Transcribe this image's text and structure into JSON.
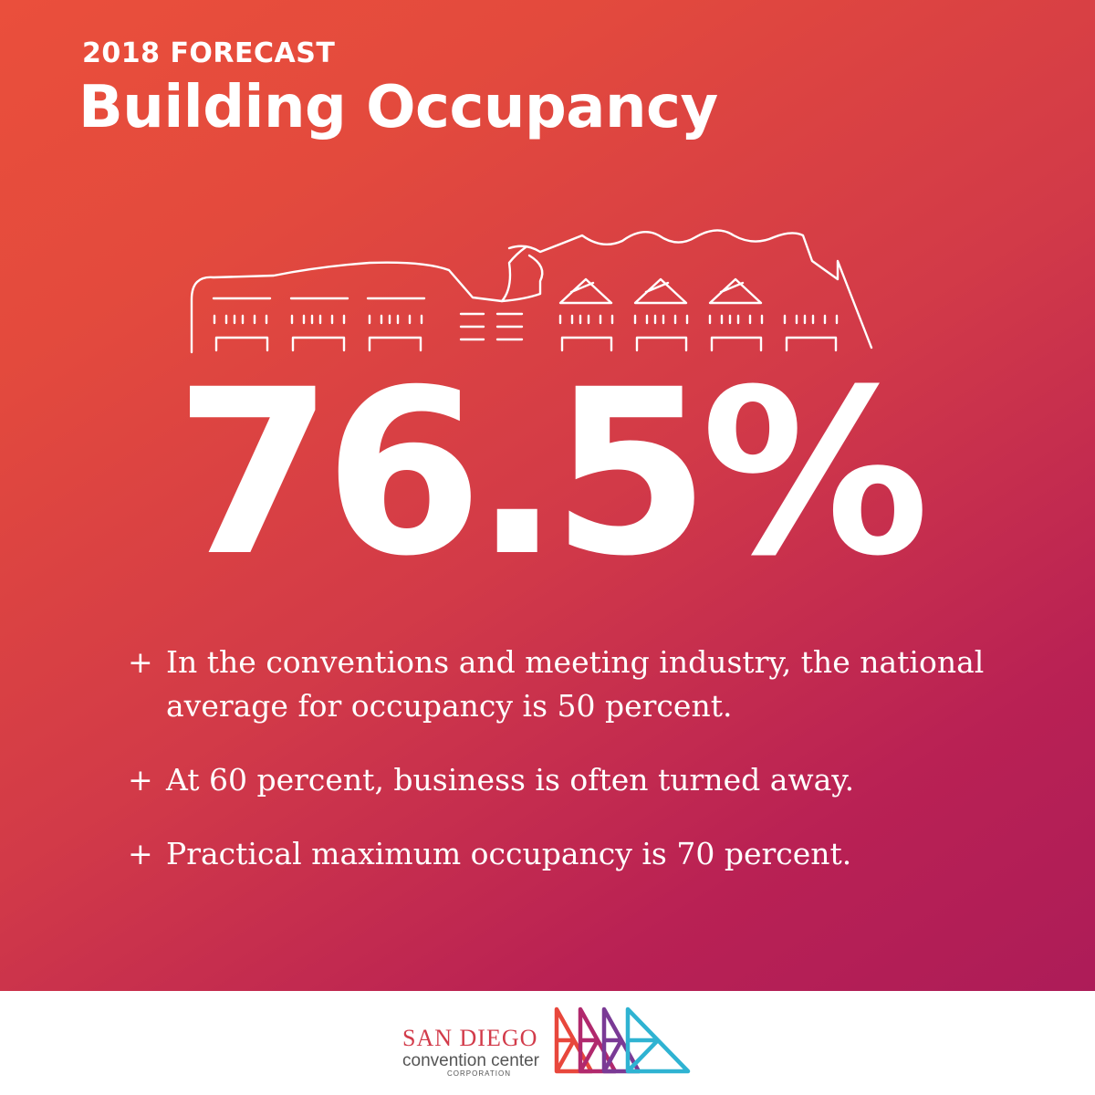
{
  "header": {
    "eyebrow": "2018 FORECAST",
    "title": "Building Occupancy"
  },
  "stat": {
    "value": "76.5%"
  },
  "facts": [
    {
      "bullet": "+",
      "text": "In the conventions and meeting industry, the national average for occupancy is 50 percent."
    },
    {
      "bullet": "+",
      "text": "At 60 percent, business is often turned away."
    },
    {
      "bullet": "+",
      "text": "Practical maximum occupancy is 70 percent."
    }
  ],
  "footer": {
    "org_name": "SAN DIEGO",
    "org_subtitle": "convention center",
    "org_suffix": "CORPORATION",
    "logo_icon": "triangle-grid-logo-icon"
  },
  "colors": {
    "gradient_start": "#ea4f3c",
    "gradient_end": "#ad1c58",
    "text": "#ffffff",
    "logo_red": "#e8473c",
    "logo_magenta": "#b1296d",
    "logo_purple": "#7a3a95",
    "logo_cyan": "#2fb3d2"
  }
}
